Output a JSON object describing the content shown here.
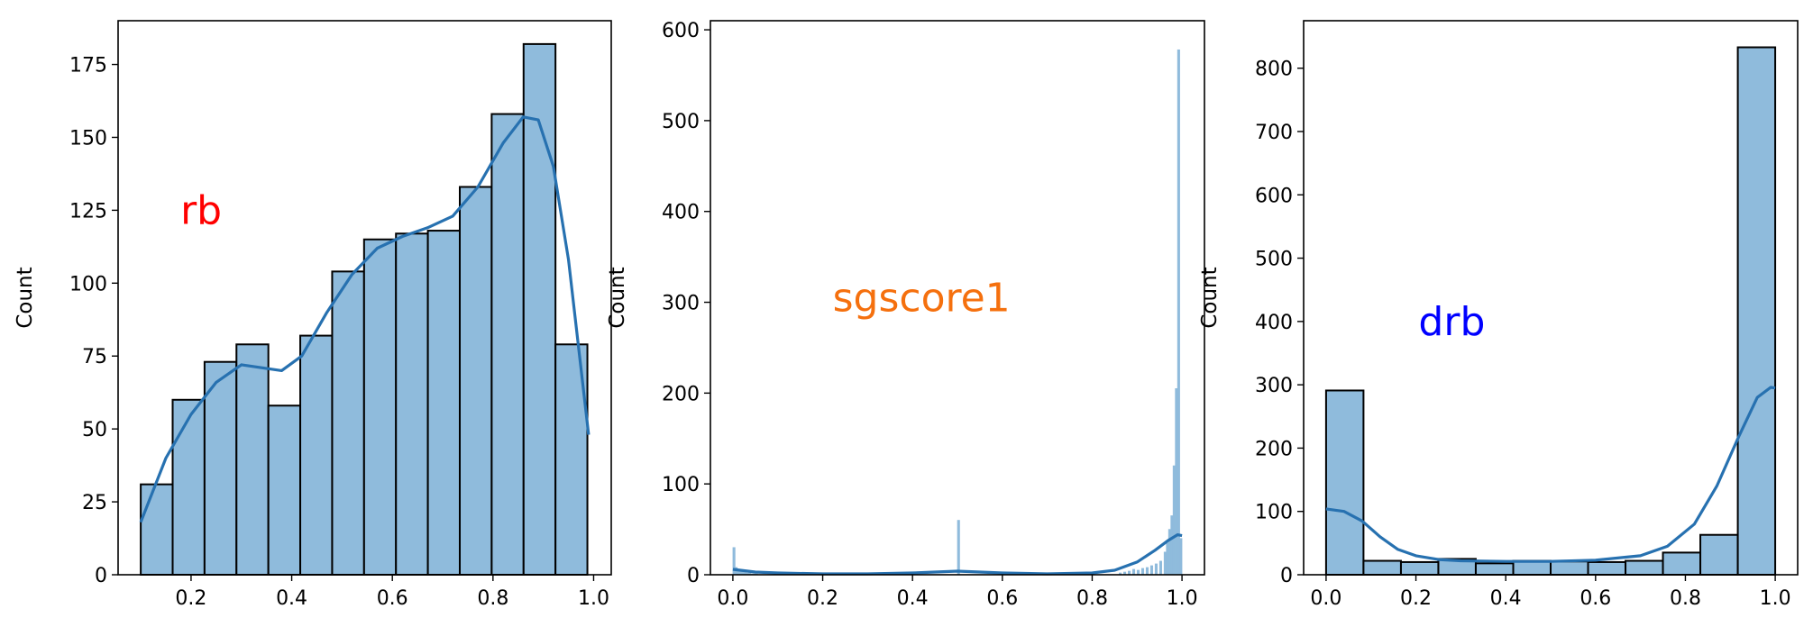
{
  "chart_data": [
    {
      "type": "bar",
      "subtype": "histogram_with_kde",
      "annotation": "rb",
      "annotation_color": "#ff0000",
      "ylabel": "Count",
      "xlim": [
        0.055,
        1.035
      ],
      "ylim": [
        0,
        190
      ],
      "xticks": [
        0.2,
        0.4,
        0.6,
        0.8,
        1.0
      ],
      "xtick_labels": [
        "0.2",
        "0.4",
        "0.6",
        "0.8",
        "1.0"
      ],
      "yticks": [
        0,
        25,
        50,
        75,
        100,
        125,
        150,
        175
      ],
      "ytick_labels": [
        "0",
        "25",
        "50",
        "75",
        "100",
        "125",
        "150",
        "175"
      ],
      "bins": [
        [
          0.1,
          0.1634,
          31
        ],
        [
          0.1634,
          0.2268,
          60
        ],
        [
          0.2268,
          0.2902,
          73
        ],
        [
          0.2902,
          0.3536,
          79
        ],
        [
          0.3536,
          0.417,
          58
        ],
        [
          0.417,
          0.4804,
          82
        ],
        [
          0.4804,
          0.5438,
          104
        ],
        [
          0.5438,
          0.6072,
          115
        ],
        [
          0.6072,
          0.6706,
          117
        ],
        [
          0.6706,
          0.734,
          118
        ],
        [
          0.734,
          0.7974,
          133
        ],
        [
          0.7974,
          0.8608,
          158
        ],
        [
          0.8608,
          0.9242,
          182
        ],
        [
          0.9242,
          0.9876,
          79
        ]
      ],
      "kde": [
        [
          0.1,
          18
        ],
        [
          0.15,
          40
        ],
        [
          0.2,
          55
        ],
        [
          0.25,
          66
        ],
        [
          0.3,
          72
        ],
        [
          0.34,
          71
        ],
        [
          0.38,
          70
        ],
        [
          0.42,
          75
        ],
        [
          0.47,
          90
        ],
        [
          0.52,
          103
        ],
        [
          0.57,
          112
        ],
        [
          0.62,
          116
        ],
        [
          0.67,
          119
        ],
        [
          0.72,
          123
        ],
        [
          0.77,
          133
        ],
        [
          0.82,
          148
        ],
        [
          0.86,
          157
        ],
        [
          0.89,
          156
        ],
        [
          0.92,
          140
        ],
        [
          0.95,
          108
        ],
        [
          0.99,
          48
        ]
      ],
      "bar_color": "#8fbbdc",
      "line_color": "#2771b0"
    },
    {
      "type": "bar",
      "subtype": "histogram_with_kde",
      "annotation": "sgscore1",
      "annotation_color": "#f5700e",
      "ylabel": "Count",
      "xlim": [
        -0.05,
        1.05
      ],
      "ylim": [
        0,
        610
      ],
      "xticks": [
        0.0,
        0.2,
        0.4,
        0.6,
        0.8,
        1.0
      ],
      "xtick_labels": [
        "0.0",
        "0.2",
        "0.4",
        "0.6",
        "0.8",
        "1.0"
      ],
      "yticks": [
        0,
        100,
        200,
        300,
        400,
        500,
        600
      ],
      "ytick_labels": [
        "0",
        "100",
        "200",
        "300",
        "400",
        "500",
        "600"
      ],
      "bin_width": 0.005,
      "bins_start": [
        [
          0.0,
          30
        ],
        [
          0.005,
          8
        ],
        [
          0.01,
          6
        ],
        [
          0.015,
          5
        ],
        [
          0.02,
          4
        ],
        [
          0.025,
          3
        ],
        [
          0.03,
          2
        ],
        [
          0.035,
          2
        ],
        [
          0.04,
          1
        ],
        [
          0.045,
          1
        ],
        [
          0.05,
          1
        ]
      ],
      "bins_mid": [
        [
          0.5,
          60
        ]
      ],
      "bins_end": [
        [
          0.86,
          2
        ],
        [
          0.87,
          3
        ],
        [
          0.88,
          4
        ],
        [
          0.89,
          6
        ],
        [
          0.9,
          5
        ],
        [
          0.91,
          7
        ],
        [
          0.92,
          8
        ],
        [
          0.93,
          10
        ],
        [
          0.94,
          12
        ],
        [
          0.95,
          15
        ],
        [
          0.96,
          25
        ],
        [
          0.965,
          35
        ],
        [
          0.97,
          50
        ],
        [
          0.975,
          65
        ],
        [
          0.98,
          120
        ],
        [
          0.985,
          205
        ],
        [
          0.99,
          578
        ],
        [
          0.995,
          40
        ]
      ],
      "kde": [
        [
          0.0,
          6
        ],
        [
          0.05,
          3
        ],
        [
          0.1,
          2
        ],
        [
          0.2,
          1
        ],
        [
          0.3,
          1
        ],
        [
          0.4,
          2
        ],
        [
          0.45,
          3
        ],
        [
          0.5,
          4
        ],
        [
          0.55,
          3
        ],
        [
          0.6,
          2
        ],
        [
          0.7,
          1
        ],
        [
          0.8,
          2
        ],
        [
          0.85,
          5
        ],
        [
          0.9,
          14
        ],
        [
          0.94,
          27
        ],
        [
          0.97,
          38
        ],
        [
          0.99,
          44
        ],
        [
          1.0,
          43
        ]
      ],
      "bar_color": "#8fbbdc",
      "line_color": "#2771b0"
    },
    {
      "type": "bar",
      "subtype": "histogram_with_kde",
      "annotation": "drb",
      "annotation_color": "#0000ff",
      "ylabel": "Count",
      "xlim": [
        -0.05,
        1.05
      ],
      "ylim": [
        0,
        875
      ],
      "xticks": [
        0.0,
        0.2,
        0.4,
        0.6,
        0.8,
        1.0
      ],
      "xtick_labels": [
        "0.0",
        "0.2",
        "0.4",
        "0.6",
        "0.8",
        "1.0"
      ],
      "yticks": [
        0,
        100,
        200,
        300,
        400,
        500,
        600,
        700,
        800
      ],
      "ytick_labels": [
        "0",
        "100",
        "200",
        "300",
        "400",
        "500",
        "600",
        "700",
        "800"
      ],
      "bins": [
        [
          0.0,
          0.0833,
          291
        ],
        [
          0.0833,
          0.1667,
          22
        ],
        [
          0.1667,
          0.25,
          20
        ],
        [
          0.25,
          0.3333,
          25
        ],
        [
          0.3333,
          0.4167,
          18
        ],
        [
          0.4167,
          0.5,
          22
        ],
        [
          0.5,
          0.5833,
          21
        ],
        [
          0.5833,
          0.6667,
          20
        ],
        [
          0.6667,
          0.75,
          22
        ],
        [
          0.75,
          0.8333,
          35
        ],
        [
          0.8333,
          0.9167,
          63
        ],
        [
          0.9167,
          1.0,
          833
        ]
      ],
      "kde": [
        [
          0.0,
          104
        ],
        [
          0.04,
          100
        ],
        [
          0.08,
          85
        ],
        [
          0.12,
          60
        ],
        [
          0.16,
          40
        ],
        [
          0.2,
          30
        ],
        [
          0.25,
          24
        ],
        [
          0.3,
          22
        ],
        [
          0.4,
          21
        ],
        [
          0.5,
          21
        ],
        [
          0.6,
          23
        ],
        [
          0.7,
          30
        ],
        [
          0.76,
          45
        ],
        [
          0.82,
          80
        ],
        [
          0.87,
          140
        ],
        [
          0.92,
          220
        ],
        [
          0.96,
          280
        ],
        [
          0.99,
          296
        ],
        [
          1.0,
          295
        ]
      ],
      "bar_color": "#8fbbdc",
      "line_color": "#2771b0"
    }
  ]
}
